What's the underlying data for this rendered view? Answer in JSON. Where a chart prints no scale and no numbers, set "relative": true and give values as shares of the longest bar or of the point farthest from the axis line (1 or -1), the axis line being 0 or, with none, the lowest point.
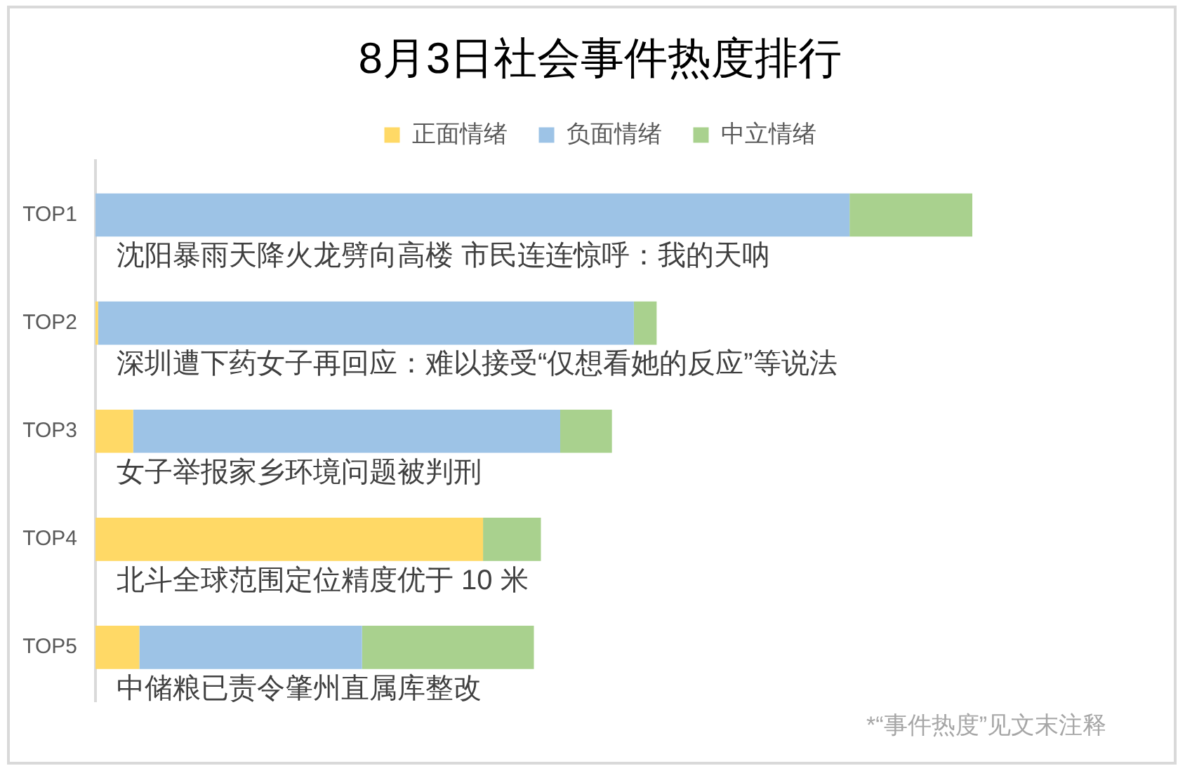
{
  "chart_data": {
    "type": "bar",
    "orientation": "horizontal",
    "stacked": true,
    "relative": true,
    "title": "8月3日社会事件热度排行",
    "categories": [
      "TOP1",
      "TOP2",
      "TOP3",
      "TOP4",
      "TOP5"
    ],
    "series": [
      {
        "name": "正面情绪",
        "color": "#ffd966",
        "values": [
          0,
          0.003,
          0.043,
          0.442,
          0.05
        ]
      },
      {
        "name": "负面情绪",
        "color": "#9dc3e6",
        "values": [
          0.86,
          0.611,
          0.487,
          0,
          0.254
        ]
      },
      {
        "name": "中立情绪",
        "color": "#a9d18e",
        "values": [
          0.14,
          0.026,
          0.059,
          0.066,
          0.196
        ]
      }
    ],
    "legend": "top",
    "annotations": [
      "沈阳暴雨天降火龙劈向高楼 市民连连惊呼：我的天呐",
      "深圳遭下药女子再回应：难以接受“仅想看她的反应”等说法",
      "女子举报家乡环境问题被判刑",
      "北斗全球范围定位精度优于 10 米",
      "中储粮已责令肇州直属库整改",
      "*“事件热度”见文末注释"
    ]
  }
}
